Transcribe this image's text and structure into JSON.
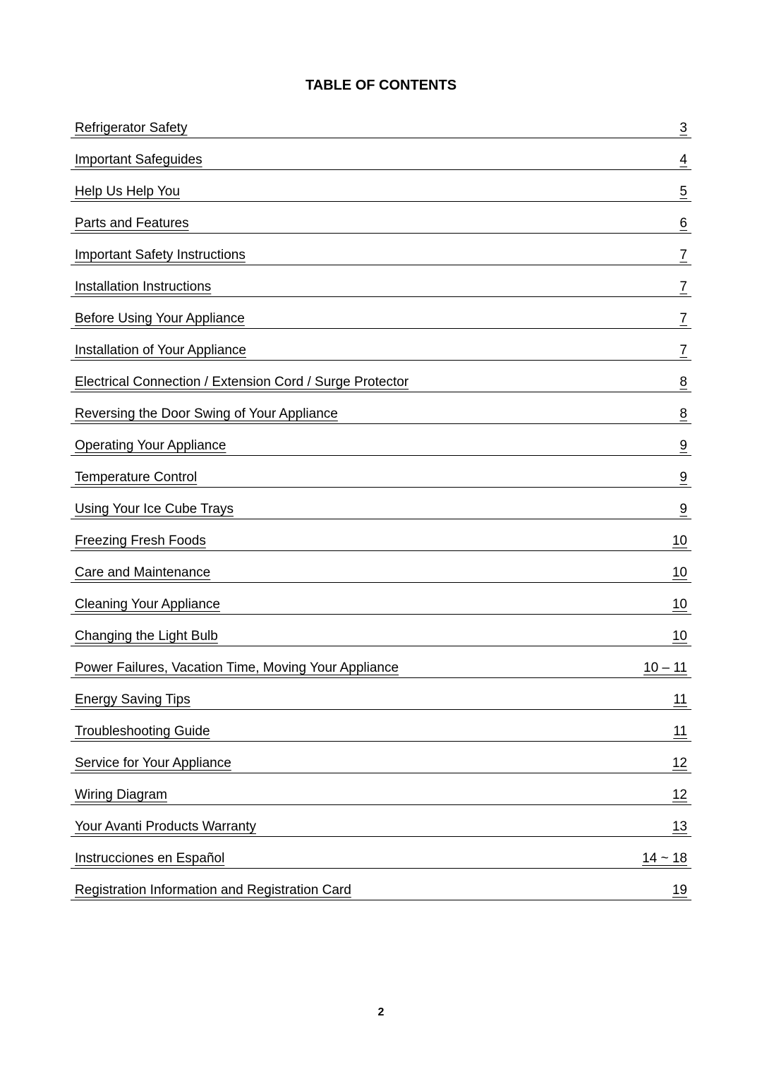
{
  "document": {
    "title": "TABLE OF CONTENTS",
    "page_number": "2",
    "title_fontsize": 20,
    "entry_fontsize": 19,
    "page_number_fontsize": 16,
    "text_color": "#000000",
    "background_color": "#ffffff",
    "underline_color": "#000000"
  },
  "toc": {
    "entries": [
      {
        "label": "Refrigerator Safety",
        "page": "3"
      },
      {
        "label": "Important Safeguides",
        "page": "4"
      },
      {
        "label": "Help Us Help You",
        "page": "5"
      },
      {
        "label": "Parts and Features",
        "page": "6"
      },
      {
        "label": "Important Safety Instructions",
        "page": "7"
      },
      {
        "label": "Installation Instructions",
        "page": "7"
      },
      {
        "label": "Before Using Your Appliance",
        "page": "7"
      },
      {
        "label": "Installation of Your Appliance",
        "page": "7"
      },
      {
        "label": "Electrical Connection / Extension Cord / Surge Protector",
        "page": "8"
      },
      {
        "label": "Reversing the Door Swing of Your Appliance",
        "page": "8"
      },
      {
        "label": "Operating Your Appliance",
        "page": "9"
      },
      {
        "label": "Temperature Control",
        "page": "9"
      },
      {
        "label": "Using Your Ice Cube Trays",
        "page": "9"
      },
      {
        "label": "Freezing Fresh Foods",
        "page": "10"
      },
      {
        "label": "Care and Maintenance",
        "page": "10"
      },
      {
        "label": "Cleaning Your Appliance",
        "page": "10"
      },
      {
        "label": "Changing the Light Bulb",
        "page": "10"
      },
      {
        "label": "Power Failures, Vacation Time, Moving Your Appliance",
        "page": "10 – 11"
      },
      {
        "label": "Energy Saving Tips",
        "page": "11"
      },
      {
        "label": "Troubleshooting Guide",
        "page": "11"
      },
      {
        "label": "Service for Your Appliance",
        "page": "12"
      },
      {
        "label": "Wiring Diagram",
        "page": "12"
      },
      {
        "label": "Your Avanti Products Warranty",
        "page": "13"
      },
      {
        "label": "Instrucciones en Español",
        "page": "14 ~ 18"
      },
      {
        "label": "Registration Information and Registration Card",
        "page": "19"
      }
    ]
  }
}
